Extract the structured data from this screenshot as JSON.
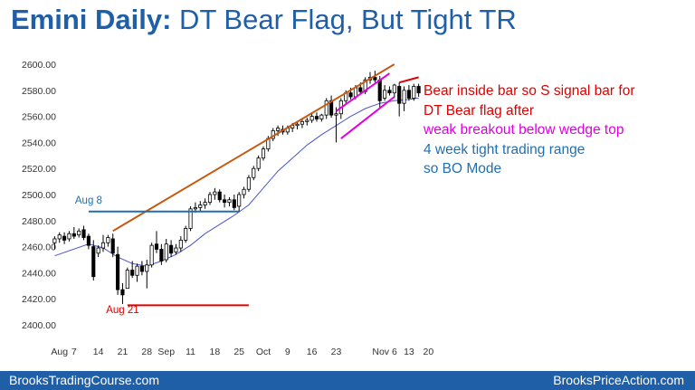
{
  "slide": {
    "title_bold": "Emini Daily:",
    "title_rest": " DT Bear Flag, But Tight TR"
  },
  "footer": {
    "left": "BrooksTradingCourse.com",
    "right": "BrooksPriceAction.com"
  },
  "annotations": [
    {
      "text": "Bear inside bar so S signal bar for",
      "color": "#e00000"
    },
    {
      "text": "DT Bear flag after",
      "color": "#e00000"
    },
    {
      "text": "weak breakout below wedge top",
      "color": "#e000e0"
    },
    {
      "text": "4 week tight trading range",
      "color": "#1f6fb0"
    },
    {
      "text": "so BO Mode",
      "color": "#1f6fb0"
    }
  ],
  "chart_data": {
    "type": "candlestick",
    "title": "",
    "xlabel": "",
    "ylabel": "",
    "ylim": [
      2400,
      2600
    ],
    "y_ticks": [
      "2400.00",
      "2420.00",
      "2440.00",
      "2460.00",
      "2480.00",
      "2500.00",
      "2520.00",
      "2540.00",
      "2560.00",
      "2580.00",
      "2600.00"
    ],
    "x_ticks": [
      {
        "label": "Aug",
        "bar": 1
      },
      {
        "label": "7",
        "bar": 4
      },
      {
        "label": "14",
        "bar": 9
      },
      {
        "label": "21",
        "bar": 14
      },
      {
        "label": "28",
        "bar": 19
      },
      {
        "label": "Sep",
        "bar": 23
      },
      {
        "label": "11",
        "bar": 28
      },
      {
        "label": "18",
        "bar": 33
      },
      {
        "label": "25",
        "bar": 38
      },
      {
        "label": "Oct",
        "bar": 43
      },
      {
        "label": "9",
        "bar": 48
      },
      {
        "label": "16",
        "bar": 53
      },
      {
        "label": "23",
        "bar": 58
      },
      {
        "label": "Nov 6",
        "bar": 68
      },
      {
        "label": "13",
        "bar": 73
      },
      {
        "label": "20",
        "bar": 77
      }
    ],
    "colors": {
      "bull": "#ffffff",
      "bear": "#000000",
      "ema": "#4a55c8"
    },
    "candles": [
      {
        "o": 2463,
        "h": 2468,
        "l": 2458,
        "c": 2466
      },
      {
        "o": 2466,
        "h": 2471,
        "l": 2463,
        "c": 2469
      },
      {
        "o": 2468,
        "h": 2471,
        "l": 2462,
        "c": 2465
      },
      {
        "o": 2466,
        "h": 2472,
        "l": 2464,
        "c": 2470
      },
      {
        "o": 2470,
        "h": 2475,
        "l": 2466,
        "c": 2468
      },
      {
        "o": 2469,
        "h": 2474,
        "l": 2467,
        "c": 2472
      },
      {
        "o": 2473,
        "h": 2476,
        "l": 2465,
        "c": 2467
      },
      {
        "o": 2468,
        "h": 2470,
        "l": 2458,
        "c": 2461
      },
      {
        "o": 2460,
        "h": 2465,
        "l": 2434,
        "c": 2437
      },
      {
        "o": 2455,
        "h": 2461,
        "l": 2452,
        "c": 2459
      },
      {
        "o": 2459,
        "h": 2469,
        "l": 2456,
        "c": 2463
      },
      {
        "o": 2463,
        "h": 2469,
        "l": 2460,
        "c": 2467
      },
      {
        "o": 2466,
        "h": 2470,
        "l": 2452,
        "c": 2455
      },
      {
        "o": 2454,
        "h": 2460,
        "l": 2423,
        "c": 2427
      },
      {
        "o": 2427,
        "h": 2432,
        "l": 2416,
        "c": 2423
      },
      {
        "o": 2428,
        "h": 2444,
        "l": 2428,
        "c": 2442
      },
      {
        "o": 2442,
        "h": 2449,
        "l": 2436,
        "c": 2438
      },
      {
        "o": 2438,
        "h": 2447,
        "l": 2433,
        "c": 2445
      },
      {
        "o": 2445,
        "h": 2449,
        "l": 2438,
        "c": 2441
      },
      {
        "o": 2441,
        "h": 2450,
        "l": 2428,
        "c": 2446
      },
      {
        "o": 2446,
        "h": 2463,
        "l": 2444,
        "c": 2461
      },
      {
        "o": 2462,
        "h": 2472,
        "l": 2455,
        "c": 2458
      },
      {
        "o": 2458,
        "h": 2462,
        "l": 2446,
        "c": 2449
      },
      {
        "o": 2450,
        "h": 2466,
        "l": 2448,
        "c": 2462
      },
      {
        "o": 2461,
        "h": 2465,
        "l": 2452,
        "c": 2455
      },
      {
        "o": 2456,
        "h": 2462,
        "l": 2454,
        "c": 2459
      },
      {
        "o": 2459,
        "h": 2468,
        "l": 2456,
        "c": 2465
      },
      {
        "o": 2465,
        "h": 2476,
        "l": 2463,
        "c": 2474
      },
      {
        "o": 2474,
        "h": 2491,
        "l": 2472,
        "c": 2489
      },
      {
        "o": 2489,
        "h": 2494,
        "l": 2486,
        "c": 2490
      },
      {
        "o": 2490,
        "h": 2495,
        "l": 2487,
        "c": 2492
      },
      {
        "o": 2492,
        "h": 2497,
        "l": 2489,
        "c": 2494
      },
      {
        "o": 2494,
        "h": 2502,
        "l": 2492,
        "c": 2500
      },
      {
        "o": 2500,
        "h": 2505,
        "l": 2496,
        "c": 2502
      },
      {
        "o": 2502,
        "h": 2504,
        "l": 2494,
        "c": 2496
      },
      {
        "o": 2496,
        "h": 2500,
        "l": 2490,
        "c": 2494
      },
      {
        "o": 2494,
        "h": 2498,
        "l": 2491,
        "c": 2496
      },
      {
        "o": 2496,
        "h": 2500,
        "l": 2488,
        "c": 2490
      },
      {
        "o": 2491,
        "h": 2502,
        "l": 2487,
        "c": 2500
      },
      {
        "o": 2500,
        "h": 2506,
        "l": 2497,
        "c": 2504
      },
      {
        "o": 2504,
        "h": 2515,
        "l": 2502,
        "c": 2513
      },
      {
        "o": 2513,
        "h": 2522,
        "l": 2511,
        "c": 2520
      },
      {
        "o": 2520,
        "h": 2530,
        "l": 2518,
        "c": 2528
      },
      {
        "o": 2528,
        "h": 2537,
        "l": 2526,
        "c": 2535
      },
      {
        "o": 2535,
        "h": 2545,
        "l": 2533,
        "c": 2543
      },
      {
        "o": 2543,
        "h": 2551,
        "l": 2541,
        "c": 2549
      },
      {
        "o": 2549,
        "h": 2553,
        "l": 2545,
        "c": 2551
      },
      {
        "o": 2550,
        "h": 2553,
        "l": 2546,
        "c": 2548
      },
      {
        "o": 2548,
        "h": 2553,
        "l": 2546,
        "c": 2551
      },
      {
        "o": 2551,
        "h": 2555,
        "l": 2548,
        "c": 2553
      },
      {
        "o": 2553,
        "h": 2556,
        "l": 2550,
        "c": 2554
      },
      {
        "o": 2554,
        "h": 2558,
        "l": 2551,
        "c": 2556
      },
      {
        "o": 2556,
        "h": 2559,
        "l": 2553,
        "c": 2557
      },
      {
        "o": 2557,
        "h": 2562,
        "l": 2555,
        "c": 2560
      },
      {
        "o": 2560,
        "h": 2563,
        "l": 2556,
        "c": 2558
      },
      {
        "o": 2558,
        "h": 2562,
        "l": 2556,
        "c": 2561
      },
      {
        "o": 2561,
        "h": 2574,
        "l": 2558,
        "c": 2572
      },
      {
        "o": 2572,
        "h": 2576,
        "l": 2559,
        "c": 2561
      },
      {
        "o": 2561,
        "h": 2567,
        "l": 2540,
        "c": 2562
      },
      {
        "o": 2562,
        "h": 2574,
        "l": 2558,
        "c": 2572
      },
      {
        "o": 2572,
        "h": 2580,
        "l": 2570,
        "c": 2578
      },
      {
        "o": 2578,
        "h": 2582,
        "l": 2573,
        "c": 2575
      },
      {
        "o": 2575,
        "h": 2584,
        "l": 2573,
        "c": 2582
      },
      {
        "o": 2582,
        "h": 2586,
        "l": 2577,
        "c": 2579
      },
      {
        "o": 2579,
        "h": 2590,
        "l": 2577,
        "c": 2588
      },
      {
        "o": 2588,
        "h": 2594,
        "l": 2585,
        "c": 2590
      },
      {
        "o": 2590,
        "h": 2595,
        "l": 2586,
        "c": 2588
      },
      {
        "o": 2588,
        "h": 2591,
        "l": 2566,
        "c": 2572
      },
      {
        "o": 2574,
        "h": 2584,
        "l": 2572,
        "c": 2580
      },
      {
        "o": 2580,
        "h": 2583,
        "l": 2576,
        "c": 2578
      },
      {
        "o": 2578,
        "h": 2585,
        "l": 2574,
        "c": 2584
      },
      {
        "o": 2583,
        "h": 2586,
        "l": 2560,
        "c": 2570
      },
      {
        "o": 2570,
        "h": 2583,
        "l": 2564,
        "c": 2580
      },
      {
        "o": 2580,
        "h": 2584,
        "l": 2572,
        "c": 2574
      },
      {
        "o": 2574,
        "h": 2585,
        "l": 2572,
        "c": 2583
      },
      {
        "o": 2583,
        "h": 2585,
        "l": 2575,
        "c": 2578
      }
    ],
    "ema": [
      {
        "bar": 0,
        "v": 2453
      },
      {
        "bar": 7,
        "v": 2462
      },
      {
        "bar": 10,
        "v": 2459
      },
      {
        "bar": 13,
        "v": 2452
      },
      {
        "bar": 16,
        "v": 2447
      },
      {
        "bar": 19,
        "v": 2445
      },
      {
        "bar": 22,
        "v": 2449
      },
      {
        "bar": 25,
        "v": 2454
      },
      {
        "bar": 28,
        "v": 2461
      },
      {
        "bar": 31,
        "v": 2470
      },
      {
        "bar": 34,
        "v": 2477
      },
      {
        "bar": 37,
        "v": 2484
      },
      {
        "bar": 40,
        "v": 2492
      },
      {
        "bar": 43,
        "v": 2505
      },
      {
        "bar": 46,
        "v": 2518
      },
      {
        "bar": 49,
        "v": 2528
      },
      {
        "bar": 52,
        "v": 2538
      },
      {
        "bar": 55,
        "v": 2546
      },
      {
        "bar": 58,
        "v": 2553
      },
      {
        "bar": 61,
        "v": 2560
      },
      {
        "bar": 64,
        "v": 2566
      },
      {
        "bar": 67,
        "v": 2570
      },
      {
        "bar": 70,
        "v": 2572
      },
      {
        "bar": 73,
        "v": 2573
      },
      {
        "bar": 75,
        "v": 2574
      }
    ],
    "lines": [
      {
        "name": "trend-line",
        "color": "#c55a11",
        "points": [
          [
            12,
            2472
          ],
          [
            70,
            2600
          ]
        ]
      },
      {
        "name": "aug8-high-line",
        "color": "#1f6fb0",
        "points": [
          [
            7,
            2487
          ],
          [
            38,
            2487
          ]
        ]
      },
      {
        "name": "aug21-low-line",
        "color": "#e00000",
        "points": [
          [
            15,
            2415
          ],
          [
            40,
            2415
          ]
        ]
      },
      {
        "name": "wedge-top-line",
        "color": "#e000e0",
        "points": [
          [
            58,
            2564
          ],
          [
            69,
            2593
          ]
        ]
      },
      {
        "name": "wedge-bottom-line",
        "color": "#e000e0",
        "points": [
          [
            59,
            2543
          ],
          [
            70,
            2575
          ]
        ]
      },
      {
        "name": "double-top-line",
        "color": "#e00000",
        "points": [
          [
            71,
            2586
          ],
          [
            75,
            2590
          ]
        ]
      }
    ],
    "labels": [
      {
        "text": "Aug 8",
        "color": "#1f6fb0",
        "bar": 7,
        "value": 2493
      },
      {
        "text": "Aug 21",
        "color": "#e00000",
        "bar": 14,
        "value": 2409
      }
    ]
  }
}
